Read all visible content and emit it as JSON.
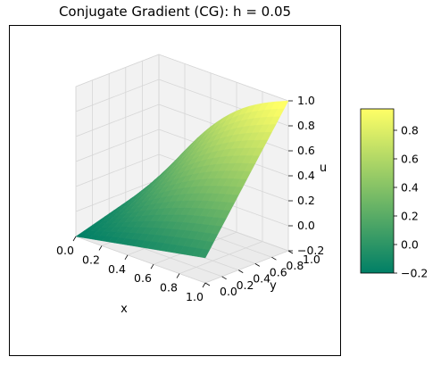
{
  "chart_data": {
    "type": "surface3d",
    "title": "Conjugate Gradient (CG): h = 0.05",
    "xlabel": "x",
    "ylabel": "y",
    "zlabel": "u",
    "xlim": [
      0,
      1
    ],
    "ylim": [
      0,
      1
    ],
    "zlim": [
      -0.2,
      1.0
    ],
    "x_ticks": [
      "0.0",
      "0.2",
      "0.4",
      "0.6",
      "0.8",
      "1.0"
    ],
    "y_ticks": [
      "0.0",
      "0.2",
      "0.4",
      "0.6",
      "0.8",
      "1.0"
    ],
    "z_ticks": [
      "−0.2",
      "0.0",
      "0.2",
      "0.4",
      "0.6",
      "0.8",
      "1.0"
    ],
    "grid": true,
    "surface_corners": {
      "x0_y0": -0.2,
      "x1_y0": 0.0,
      "x0_y1": 0.0,
      "x1_y1": 1.0,
      "x0_y0.5": 0.0
    },
    "colorbar": {
      "colormap": "summer",
      "colors": [
        "#007f66",
        "#ffff66"
      ],
      "range": [
        -0.2,
        0.95
      ],
      "ticks": [
        "−0.2",
        "0.0",
        "0.2",
        "0.4",
        "0.6",
        "0.8"
      ]
    }
  }
}
